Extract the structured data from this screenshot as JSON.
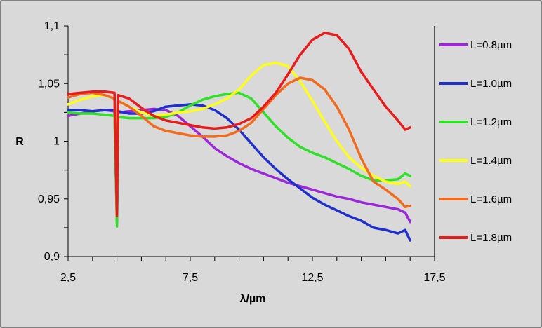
{
  "chart_data": {
    "type": "line",
    "title": "",
    "xlabel": "λ/µm",
    "ylabel": "R",
    "xlim": [
      2.5,
      17.5
    ],
    "ylim": [
      0.9,
      1.1
    ],
    "x_ticks": [
      "2,5",
      "7,5",
      "12,5",
      "17,5"
    ],
    "y_ticks": [
      "0,9",
      "0,95",
      "1",
      "1,05",
      "1,1"
    ],
    "grid": false,
    "legend_position": "right",
    "colors": {
      "background": "#d9d9d9",
      "border": "#000000"
    },
    "series": [
      {
        "name": "L=0.8µm",
        "color": "#9b27d9",
        "points": [
          [
            2.5,
            1.022
          ],
          [
            3,
            1.024
          ],
          [
            3.5,
            1.026
          ],
          [
            4,
            1.027
          ],
          [
            4.4,
            1.026
          ],
          [
            4.5,
            0.935
          ],
          [
            4.55,
            1.025
          ],
          [
            5,
            1.026
          ],
          [
            5.5,
            1.027
          ],
          [
            6,
            1.028
          ],
          [
            6.5,
            1.027
          ],
          [
            7,
            1.022
          ],
          [
            7.5,
            1.013
          ],
          [
            8,
            1.004
          ],
          [
            8.5,
            0.994
          ],
          [
            9,
            0.987
          ],
          [
            9.5,
            0.981
          ],
          [
            10,
            0.976
          ],
          [
            10.5,
            0.972
          ],
          [
            11,
            0.968
          ],
          [
            11.5,
            0.964
          ],
          [
            12,
            0.961
          ],
          [
            12.5,
            0.958
          ],
          [
            13,
            0.955
          ],
          [
            13.5,
            0.952
          ],
          [
            14,
            0.95
          ],
          [
            14.5,
            0.947
          ],
          [
            15,
            0.945
          ],
          [
            15.5,
            0.943
          ],
          [
            16,
            0.941
          ],
          [
            16.3,
            0.938
          ],
          [
            16.5,
            0.93
          ]
        ]
      },
      {
        "name": "L=1.0µm",
        "color": "#1f2fcc",
        "points": [
          [
            2.5,
            1.027
          ],
          [
            3,
            1.027
          ],
          [
            3.5,
            1.026
          ],
          [
            4,
            1.027
          ],
          [
            4.4,
            1.027
          ],
          [
            4.5,
            0.93
          ],
          [
            4.55,
            1.026
          ],
          [
            5,
            1.024
          ],
          [
            5.5,
            1.024
          ],
          [
            6,
            1.026
          ],
          [
            6.5,
            1.03
          ],
          [
            7,
            1.031
          ],
          [
            7.5,
            1.032
          ],
          [
            8,
            1.031
          ],
          [
            8.5,
            1.027
          ],
          [
            9,
            1.02
          ],
          [
            9.5,
            1.01
          ],
          [
            10,
            0.998
          ],
          [
            10.5,
            0.986
          ],
          [
            11,
            0.976
          ],
          [
            11.5,
            0.967
          ],
          [
            12,
            0.959
          ],
          [
            12.5,
            0.951
          ],
          [
            13,
            0.945
          ],
          [
            13.5,
            0.94
          ],
          [
            14,
            0.935
          ],
          [
            14.5,
            0.931
          ],
          [
            15,
            0.925
          ],
          [
            15.5,
            0.923
          ],
          [
            16,
            0.92
          ],
          [
            16.3,
            0.923
          ],
          [
            16.5,
            0.914
          ]
        ]
      },
      {
        "name": "L=1.2µm",
        "color": "#2ee026",
        "points": [
          [
            2.5,
            1.025
          ],
          [
            3,
            1.024
          ],
          [
            3.5,
            1.024
          ],
          [
            4,
            1.023
          ],
          [
            4.4,
            1.022
          ],
          [
            4.5,
            0.926
          ],
          [
            4.55,
            1.021
          ],
          [
            5,
            1.02
          ],
          [
            5.5,
            1.02
          ],
          [
            6,
            1.02
          ],
          [
            6.5,
            1.021
          ],
          [
            7,
            1.025
          ],
          [
            7.5,
            1.031
          ],
          [
            8,
            1.036
          ],
          [
            8.5,
            1.039
          ],
          [
            9,
            1.041
          ],
          [
            9.5,
            1.042
          ],
          [
            10,
            1.037
          ],
          [
            10.5,
            1.025
          ],
          [
            11,
            1.013
          ],
          [
            11.5,
            1.003
          ],
          [
            12,
            0.995
          ],
          [
            12.5,
            0.99
          ],
          [
            13,
            0.986
          ],
          [
            13.5,
            0.981
          ],
          [
            14,
            0.976
          ],
          [
            14.5,
            0.97
          ],
          [
            15,
            0.966
          ],
          [
            15.5,
            0.966
          ],
          [
            16,
            0.967
          ],
          [
            16.3,
            0.972
          ],
          [
            16.5,
            0.97
          ]
        ]
      },
      {
        "name": "L=1.4µm",
        "color": "#ffff1a",
        "points": [
          [
            2.5,
            1.032
          ],
          [
            3,
            1.036
          ],
          [
            3.5,
            1.039
          ],
          [
            4,
            1.04
          ],
          [
            4.4,
            1.037
          ],
          [
            4.5,
            0.955
          ],
          [
            4.55,
            1.035
          ],
          [
            5,
            1.03
          ],
          [
            5.5,
            1.025
          ],
          [
            6,
            1.022
          ],
          [
            6.5,
            1.023
          ],
          [
            7,
            1.025
          ],
          [
            7.5,
            1.026
          ],
          [
            8,
            1.028
          ],
          [
            8.5,
            1.032
          ],
          [
            9,
            1.037
          ],
          [
            9.5,
            1.045
          ],
          [
            10,
            1.057
          ],
          [
            10.5,
            1.066
          ],
          [
            11,
            1.068
          ],
          [
            11.5,
            1.065
          ],
          [
            12,
            1.052
          ],
          [
            12.5,
            1.035
          ],
          [
            13,
            1.017
          ],
          [
            13.5,
            1.0
          ],
          [
            14,
            0.986
          ],
          [
            14.5,
            0.977
          ],
          [
            15,
            0.97
          ],
          [
            15.5,
            0.965
          ],
          [
            16,
            0.963
          ],
          [
            16.3,
            0.965
          ],
          [
            16.5,
            0.961
          ]
        ]
      },
      {
        "name": "L=1.6µm",
        "color": "#f26b1d",
        "points": [
          [
            2.5,
            1.038
          ],
          [
            3,
            1.041
          ],
          [
            3.5,
            1.042
          ],
          [
            4,
            1.04
          ],
          [
            4.4,
            1.037
          ],
          [
            4.5,
            0.955
          ],
          [
            4.55,
            1.035
          ],
          [
            5,
            1.03
          ],
          [
            5.5,
            1.022
          ],
          [
            6,
            1.013
          ],
          [
            6.5,
            1.009
          ],
          [
            7,
            1.007
          ],
          [
            7.5,
            1.005
          ],
          [
            8,
            1.004
          ],
          [
            8.5,
            1.004
          ],
          [
            9,
            1.005
          ],
          [
            9.5,
            1.009
          ],
          [
            10,
            1.016
          ],
          [
            10.5,
            1.028
          ],
          [
            11,
            1.04
          ],
          [
            11.5,
            1.05
          ],
          [
            12,
            1.055
          ],
          [
            12.5,
            1.053
          ],
          [
            13,
            1.045
          ],
          [
            13.5,
            1.03
          ],
          [
            14,
            1.01
          ],
          [
            14.5,
            0.985
          ],
          [
            15,
            0.965
          ],
          [
            15.5,
            0.958
          ],
          [
            16,
            0.95
          ],
          [
            16.3,
            0.943
          ],
          [
            16.5,
            0.944
          ]
        ]
      },
      {
        "name": "L=1.8µm",
        "color": "#e81c1c",
        "points": [
          [
            2.5,
            1.041
          ],
          [
            3,
            1.042
          ],
          [
            3.5,
            1.043
          ],
          [
            4,
            1.043
          ],
          [
            4.4,
            1.042
          ],
          [
            4.5,
            0.935
          ],
          [
            4.55,
            1.04
          ],
          [
            5,
            1.037
          ],
          [
            5.5,
            1.029
          ],
          [
            6,
            1.022
          ],
          [
            6.5,
            1.018
          ],
          [
            7,
            1.016
          ],
          [
            7.5,
            1.014
          ],
          [
            8,
            1.012
          ],
          [
            8.5,
            1.011
          ],
          [
            9,
            1.012
          ],
          [
            9.5,
            1.015
          ],
          [
            10,
            1.02
          ],
          [
            10.5,
            1.03
          ],
          [
            11,
            1.042
          ],
          [
            11.5,
            1.058
          ],
          [
            12,
            1.075
          ],
          [
            12.5,
            1.088
          ],
          [
            13,
            1.094
          ],
          [
            13.5,
            1.092
          ],
          [
            14,
            1.08
          ],
          [
            14.5,
            1.06
          ],
          [
            15,
            1.045
          ],
          [
            15.5,
            1.03
          ],
          [
            16,
            1.018
          ],
          [
            16.3,
            1.01
          ],
          [
            16.5,
            1.012
          ]
        ]
      }
    ]
  }
}
